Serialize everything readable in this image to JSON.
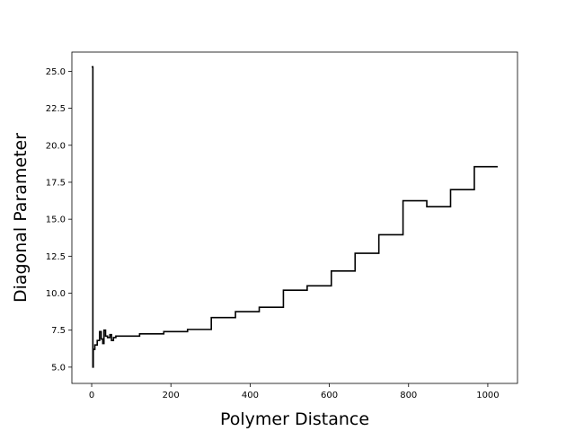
{
  "chart_data": {
    "type": "line",
    "title": "",
    "xlabel": "Polymer Distance",
    "ylabel": "Diagonal Parameter",
    "xlim": [
      -50,
      1075
    ],
    "ylim": [
      3.9,
      26.3
    ],
    "xticks": [
      0,
      200,
      400,
      600,
      800,
      1000
    ],
    "xtick_labels": [
      "0",
      "200",
      "400",
      "600",
      "800",
      "1000"
    ],
    "yticks": [
      5.0,
      7.5,
      10.0,
      12.5,
      15.0,
      17.5,
      20.0,
      22.5,
      25.0
    ],
    "ytick_labels": [
      "5.0",
      "7.5",
      "10.0",
      "12.5",
      "15.0",
      "17.5",
      "20.0",
      "22.5",
      "25.0"
    ],
    "grid": false,
    "series": [
      {
        "color": "#000000",
        "step": true,
        "points": [
          [
            0,
            25.3
          ],
          [
            3,
            25.3
          ],
          [
            3,
            5.0
          ],
          [
            4,
            5.0
          ],
          [
            4,
            6.2
          ],
          [
            8,
            6.2
          ],
          [
            8,
            6.5
          ],
          [
            14,
            6.5
          ],
          [
            14,
            6.8
          ],
          [
            20,
            6.8
          ],
          [
            20,
            7.4
          ],
          [
            24,
            7.4
          ],
          [
            24,
            6.9
          ],
          [
            28,
            6.9
          ],
          [
            28,
            6.6
          ],
          [
            31,
            6.6
          ],
          [
            31,
            7.5
          ],
          [
            35,
            7.5
          ],
          [
            35,
            7.1
          ],
          [
            40,
            7.1
          ],
          [
            40,
            7.0
          ],
          [
            46,
            7.0
          ],
          [
            46,
            7.2
          ],
          [
            50,
            7.2
          ],
          [
            50,
            6.8
          ],
          [
            55,
            6.8
          ],
          [
            55,
            7.0
          ],
          [
            61,
            7.0
          ],
          [
            61,
            7.1
          ],
          [
            121,
            7.1
          ],
          [
            121,
            7.25
          ],
          [
            182,
            7.25
          ],
          [
            182,
            7.4
          ],
          [
            242,
            7.4
          ],
          [
            242,
            7.55
          ],
          [
            302,
            7.55
          ],
          [
            302,
            8.35
          ],
          [
            363,
            8.35
          ],
          [
            363,
            8.75
          ],
          [
            423,
            8.75
          ],
          [
            423,
            9.05
          ],
          [
            484,
            9.05
          ],
          [
            484,
            10.2
          ],
          [
            544,
            10.2
          ],
          [
            544,
            10.5
          ],
          [
            605,
            10.5
          ],
          [
            605,
            11.5
          ],
          [
            665,
            11.5
          ],
          [
            665,
            12.7
          ],
          [
            725,
            12.7
          ],
          [
            725,
            13.95
          ],
          [
            786,
            13.95
          ],
          [
            786,
            16.25
          ],
          [
            846,
            16.25
          ],
          [
            846,
            15.85
          ],
          [
            906,
            15.85
          ],
          [
            906,
            17.0
          ],
          [
            966,
            17.0
          ],
          [
            966,
            18.55
          ],
          [
            1025,
            18.55
          ]
        ]
      }
    ]
  }
}
